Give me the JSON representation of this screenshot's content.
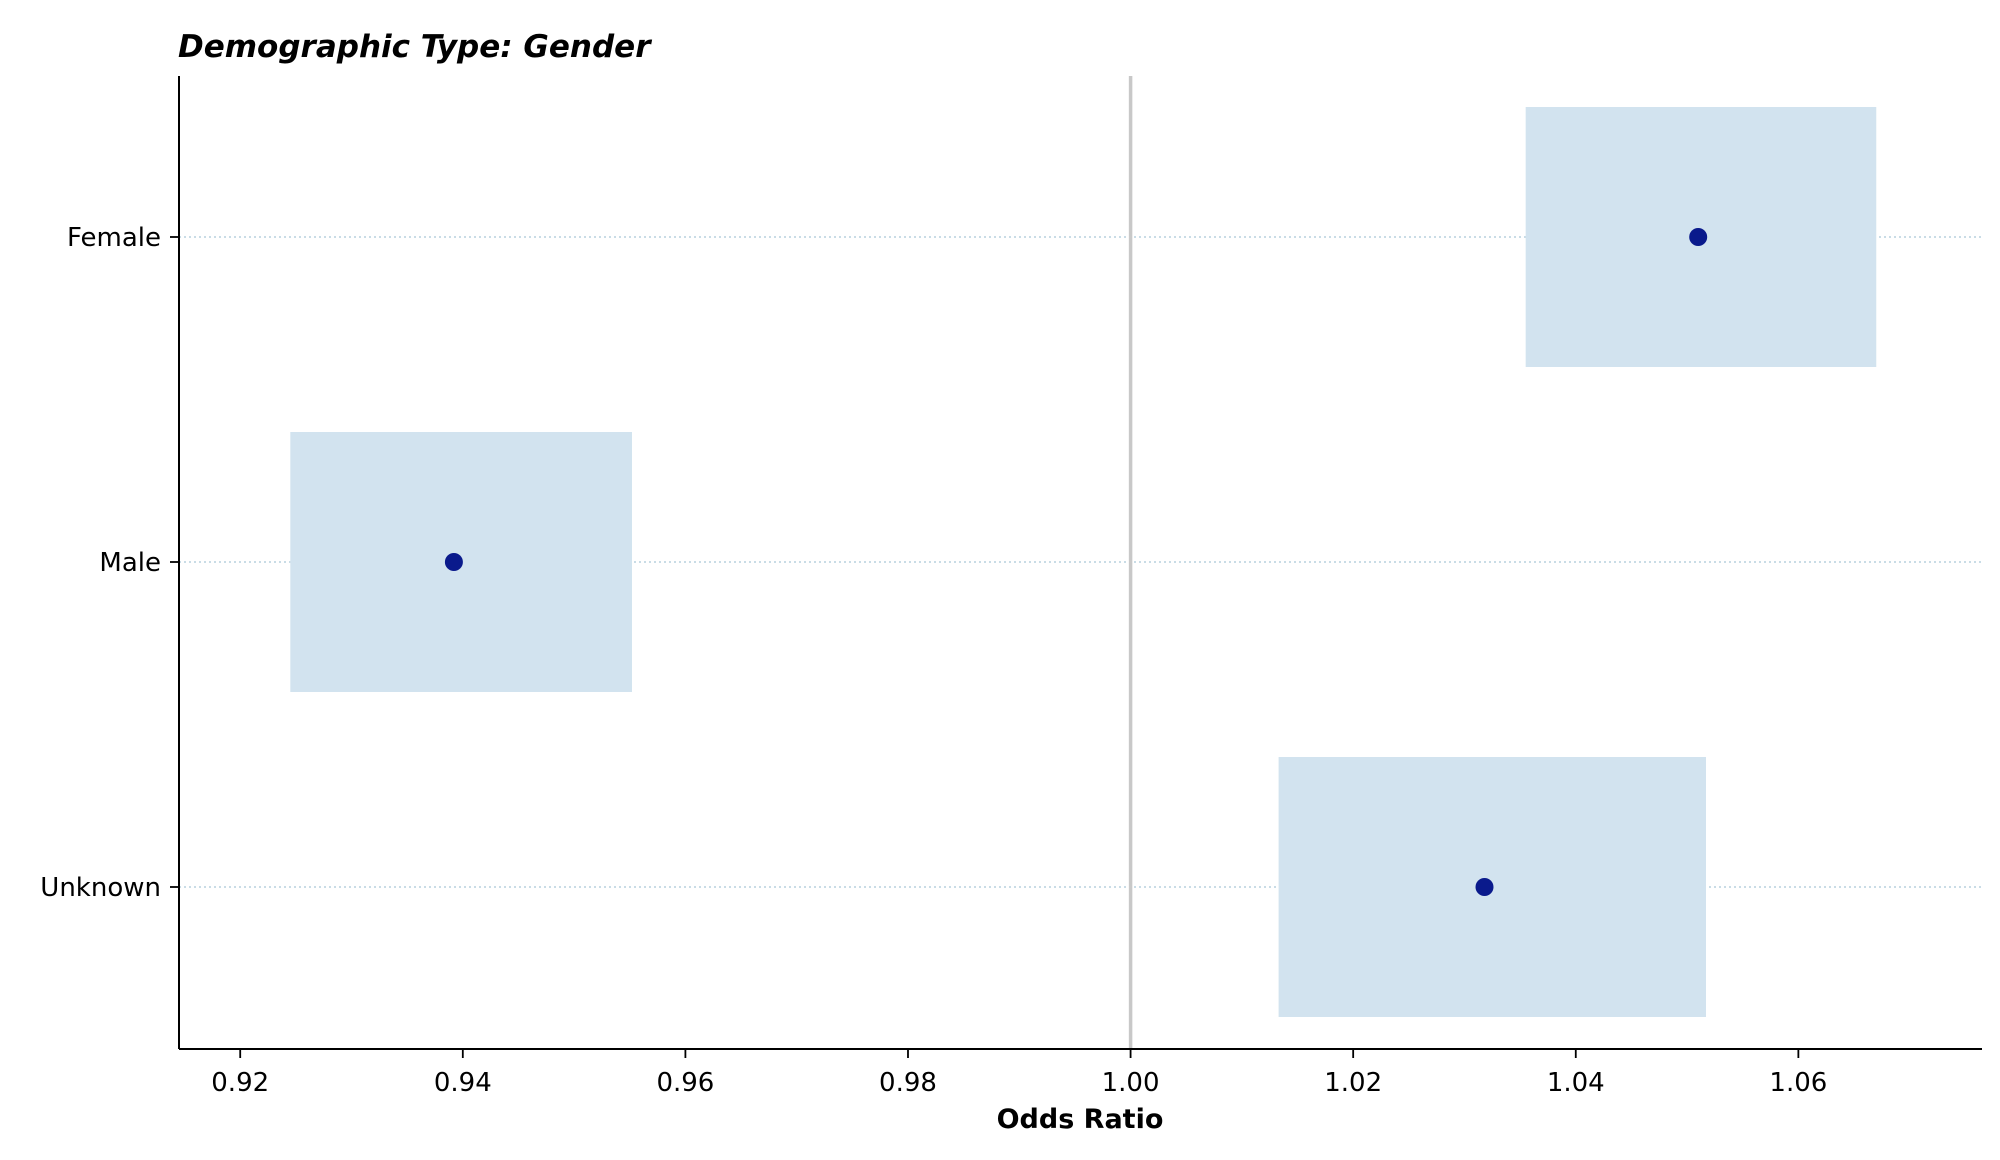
{
  "chart_data": {
    "type": "forest",
    "title": "Demographic Type: Gender",
    "xlabel": "Odds Ratio",
    "ylabel": "",
    "xlim": [
      0.9145,
      1.0765
    ],
    "xticks": [
      0.92,
      0.94,
      0.96,
      0.98,
      1.0,
      1.02,
      1.04,
      1.06
    ],
    "xtick_labels": [
      "0.92",
      "0.94",
      "0.96",
      "0.98",
      "1.00",
      "1.02",
      "1.04",
      "1.06"
    ],
    "reference_line": 1.0,
    "categories": [
      "Female",
      "Male",
      "Unknown"
    ],
    "points": [
      {
        "category": "Female",
        "odds_ratio": 1.051,
        "ci_low": 1.0355,
        "ci_high": 1.067
      },
      {
        "category": "Male",
        "odds_ratio": 0.9392,
        "ci_low": 0.9245,
        "ci_high": 0.9552
      },
      {
        "category": "Unknown",
        "odds_ratio": 1.0318,
        "ci_low": 1.0133,
        "ci_high": 1.0517
      }
    ],
    "grid": "horizontal dotted",
    "legend": "none",
    "colors": {
      "point": "#0a1a8c",
      "ci_band": "#d2e3ef",
      "reference_line": "#c8c8c8",
      "grid": "#a9c6d6",
      "axis": "#000000"
    }
  }
}
